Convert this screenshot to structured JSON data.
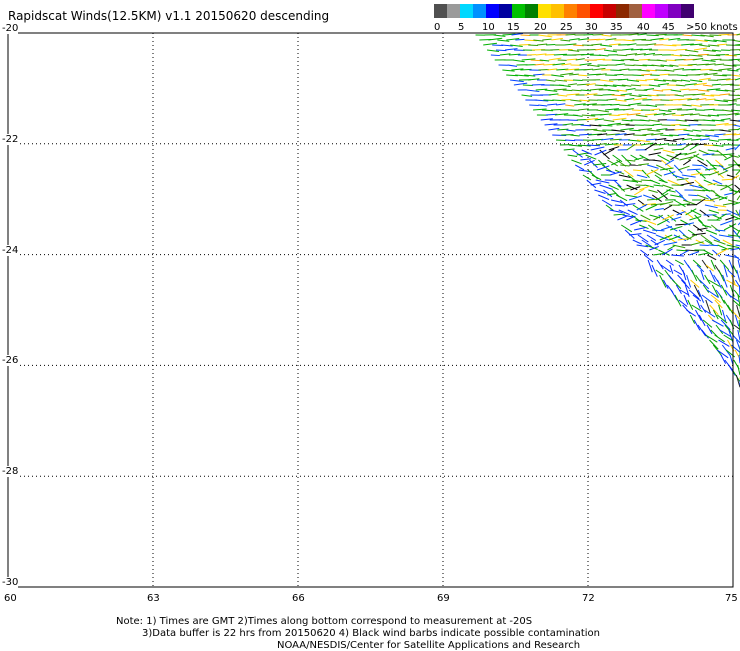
{
  "title": "Rapidscat Winds(12.5KM) v1.1 20150620 descending",
  "legend": {
    "unit_label": ">50 knots",
    "colors": [
      "#505050",
      "#9a9a9a",
      "#00d8ff",
      "#0090ff",
      "#0000ff",
      "#0000a0",
      "#00c000",
      "#008000",
      "#ffe000",
      "#ffc000",
      "#ff8000",
      "#ff5000",
      "#ff0000",
      "#c80000",
      "#8b2800",
      "#a06040",
      "#ff00ff",
      "#c000ff",
      "#8000c0",
      "#400070"
    ],
    "labels": [
      "0",
      "5",
      "10",
      "15",
      "20",
      "25",
      "30",
      "35",
      "40",
      "45"
    ]
  },
  "axes": {
    "x_ticks": [
      "60",
      "63",
      "66",
      "69",
      "72",
      "75"
    ],
    "y_ticks": [
      "-20",
      "-22",
      "-24",
      "-26",
      "-28",
      "-30"
    ],
    "lon_range": [
      60,
      75
    ],
    "lat_range": [
      -30,
      -20
    ],
    "grid": "dotted"
  },
  "notes": [
    "Note: 1) Times are GMT 2)Times along bottom correspond to measurement at -20S",
    "3)Data buffer is 22 hrs from 20150620 4) Black wind barbs indicate possible contamination",
    "NOAA/NESDIS/Center for Satellite Applications and Research"
  ]
}
